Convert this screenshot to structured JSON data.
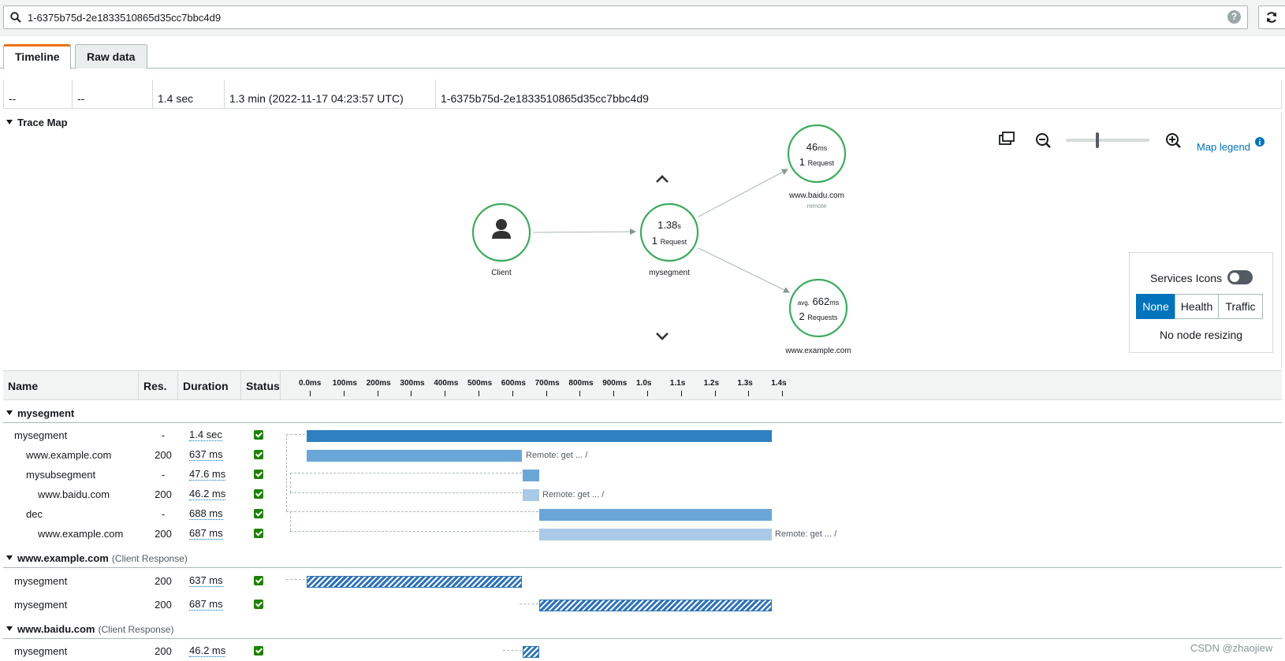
{
  "search": {
    "query": "1-6375b75d-2e1833510865d35cc7bbc4d9",
    "help_icon": "question-circle-icon",
    "refresh_icon": "refresh-icon"
  },
  "tabs": [
    {
      "label": "Timeline",
      "active": true
    },
    {
      "label": "Raw data",
      "active": false
    }
  ],
  "summary": {
    "cells": [
      "--",
      "--",
      "1.4 sec",
      "1.3 min (2022-11-17 04:23:57 UTC)",
      "1-6375b75d-2e1833510865d35cc7bbc4d9"
    ]
  },
  "trace_map": {
    "title": "Trace Map",
    "map_legend": "Map legend",
    "nodes": {
      "client": {
        "label": "Client"
      },
      "mysegment": {
        "value": "1.38",
        "unit": "s",
        "count": "1",
        "count_label": "Request",
        "label": "mysegment"
      },
      "baidu": {
        "value": "46",
        "unit": "ms",
        "count": "1",
        "count_label": "Request",
        "label": "www.baidu.com",
        "sub": "remote"
      },
      "example": {
        "prefix": "avg.",
        "value": "662",
        "unit": "ms",
        "count": "2",
        "count_label": "Requests",
        "label": "www.example.com"
      }
    },
    "zoom_level": 0.38
  },
  "services_panel": {
    "label": "Services Icons",
    "toggle_on": false,
    "options": [
      "None",
      "Health",
      "Traffic"
    ],
    "selected": "None",
    "resize": "No node resizing"
  },
  "timeline": {
    "columns": {
      "name": "Name",
      "res": "Res.",
      "duration": "Duration",
      "status": "Status"
    },
    "ticks": [
      "0.0ms",
      "100ms",
      "200ms",
      "300ms",
      "400ms",
      "500ms",
      "600ms",
      "700ms",
      "800ms",
      "900ms",
      "1.0s",
      "1.1s",
      "1.2s",
      "1.3s",
      "1.4s"
    ],
    "groups": [
      {
        "title": "mysegment",
        "note": ""
      },
      {
        "title": "www.example.com",
        "note": "(Client Response)"
      },
      {
        "title": "www.baidu.com",
        "note": "(Client Response)"
      }
    ],
    "rows": [
      {
        "name": "mysegment",
        "res": "-",
        "duration": "1.4 sec",
        "note": ""
      },
      {
        "name": "www.example.com",
        "res": "200",
        "duration": "637 ms",
        "note": "Remote: get ... /"
      },
      {
        "name": "mysubsegment",
        "res": "-",
        "duration": "47.6 ms",
        "note": ""
      },
      {
        "name": "www.baidu.com",
        "res": "200",
        "duration": "46.2 ms",
        "note": "Remote: get ... /"
      },
      {
        "name": "dec",
        "res": "-",
        "duration": "688 ms",
        "note": ""
      },
      {
        "name": "www.example.com",
        "res": "200",
        "duration": "687 ms",
        "note": "Remote: get ... /"
      },
      {
        "name": "mysegment",
        "res": "200",
        "duration": "637 ms",
        "note": ""
      },
      {
        "name": "mysegment",
        "res": "200",
        "duration": "687 ms",
        "note": ""
      },
      {
        "name": "mysegment",
        "res": "200",
        "duration": "46.2 ms",
        "note": ""
      }
    ]
  },
  "watermark": "CSDN @zhaojiew",
  "colors": {
    "accent": "#0073bb",
    "tab_active": "#ec7211",
    "node_ring": "#3fab5e",
    "ok": "#1d8102"
  }
}
